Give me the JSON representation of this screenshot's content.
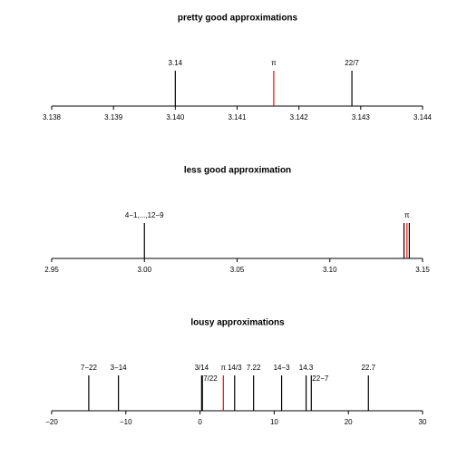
{
  "chart_data": [
    {
      "type": "spike",
      "title": "pretty good approximations",
      "values": [
        3.14,
        3.14159265,
        3.14285714
      ],
      "value_labels": [
        "3.14",
        "π",
        "22/7"
      ],
      "colors": [
        "#000000",
        "#ff0000",
        "#000000"
      ],
      "xlim": [
        3.138,
        3.144
      ],
      "xticks": [
        3.138,
        3.139,
        {
          "value": 3.14,
          "label": "3.140"
        },
        3.141,
        3.142,
        3.143,
        3.144
      ]
    },
    {
      "type": "spike",
      "title": "less good approximation",
      "values": [
        3.0,
        3.14,
        3.14159265,
        3.14285714
      ],
      "value_labels": [
        "4−1,...,12−9",
        null,
        "π",
        null
      ],
      "colors": [
        "#000000",
        "#000000",
        "#ff0000",
        "#000000"
      ],
      "xlim": [
        2.95,
        3.15
      ],
      "xticks": [
        2.95,
        {
          "value": 3.0,
          "label": "3.00"
        },
        3.05,
        {
          "value": 3.1,
          "label": "3.10"
        },
        3.15
      ]
    },
    {
      "type": "spike",
      "title": "lousy approximations",
      "values": [
        -15,
        -11,
        0.2142857,
        0.3181818,
        3.14159265,
        4.6666667,
        7.22,
        11,
        14.3,
        15,
        22.7
      ],
      "value_labels": [
        "7−22",
        "3−14",
        "3/14",
        "7/22",
        "π",
        "14/3",
        "7.22",
        "14−3",
        "14.3",
        "22−7",
        "22.7"
      ],
      "colors": [
        "#000000",
        "#000000",
        "#000000",
        "#000000",
        "#ff0000",
        "#000000",
        "#000000",
        "#000000",
        "#000000",
        "#000000",
        "#000000"
      ],
      "xlim": [
        -20,
        30
      ],
      "xticks": [
        {
          "value": -20,
          "label": "−20"
        },
        {
          "value": -10,
          "label": "−10"
        },
        0,
        10,
        20,
        30
      ]
    }
  ]
}
